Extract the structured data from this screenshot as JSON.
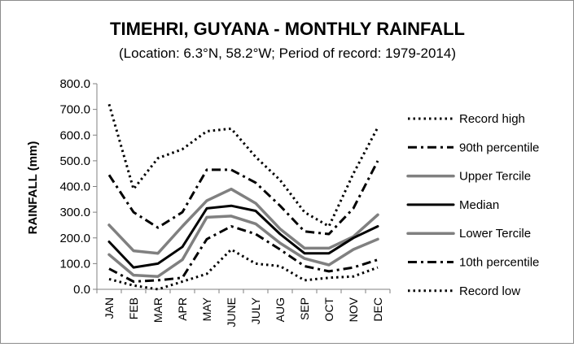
{
  "chart_data": {
    "type": "line",
    "title": "TIMEHRI, GUYANA - MONTHLY RAINFALL",
    "subtitle": "(Location: 6.3°N, 58.2°W; Period of record: 1979-2014)",
    "xlabel": "",
    "ylabel": "RAINFALL (mm)",
    "ylim": [
      0,
      800
    ],
    "yticks": [
      "0.0",
      "100.0",
      "200.0",
      "300.0",
      "400.0",
      "500.0",
      "600.0",
      "700.0",
      "800.0"
    ],
    "grid": false,
    "legend_position": "right",
    "categories": [
      "JAN",
      "FEB",
      "MAR",
      "APR",
      "MAY",
      "JUNE",
      "JULY",
      "AUG",
      "SEP",
      "OCT",
      "NOV",
      "DEC"
    ],
    "series": [
      {
        "name": "Record high",
        "color": "#000000",
        "style": "dotted",
        "values": [
          720,
          390,
          510,
          545,
          615,
          625,
          515,
          425,
          300,
          245,
          450,
          630
        ]
      },
      {
        "name": "90th percentile",
        "color": "#000000",
        "style": "dashdot",
        "values": [
          445,
          300,
          240,
          300,
          465,
          465,
          415,
          325,
          225,
          215,
          315,
          500
        ]
      },
      {
        "name": "Upper Tercile",
        "color": "#808080",
        "style": "solid",
        "values": [
          250,
          150,
          140,
          245,
          345,
          390,
          335,
          235,
          160,
          160,
          205,
          290
        ]
      },
      {
        "name": "Median",
        "color": "#000000",
        "style": "solid",
        "values": [
          185,
          85,
          100,
          165,
          315,
          325,
          305,
          215,
          140,
          140,
          200,
          245
        ]
      },
      {
        "name": "Lower Tercile",
        "color": "#808080",
        "style": "solid",
        "values": [
          135,
          55,
          50,
          115,
          280,
          285,
          255,
          180,
          120,
          95,
          155,
          195
        ]
      },
      {
        "name": "10th percentile",
        "color": "#000000",
        "style": "dashdot",
        "values": [
          80,
          30,
          35,
          45,
          195,
          245,
          215,
          155,
          90,
          70,
          85,
          115
        ]
      },
      {
        "name": "Record low",
        "color": "#000000",
        "style": "dotted",
        "values": [
          40,
          15,
          0,
          30,
          60,
          155,
          100,
          90,
          35,
          45,
          50,
          85
        ]
      }
    ]
  }
}
